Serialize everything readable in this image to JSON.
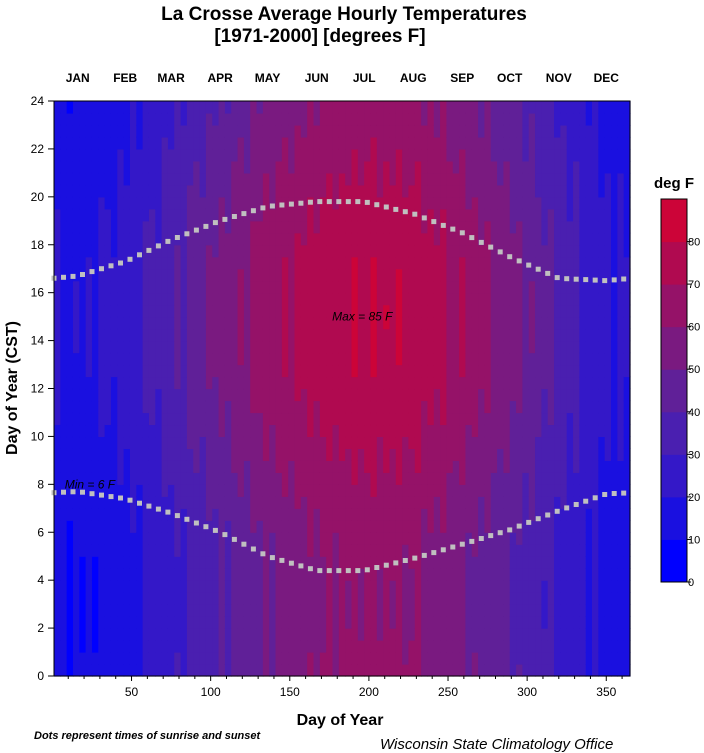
{
  "chart_data": {
    "type": "heatmap",
    "title": "La Crosse  Average Hourly Temperatures",
    "subtitle": "[1971-2000]  [degrees F]",
    "xlabel": "Day of Year",
    "ylabel": "Day of Year (CST)",
    "xlim": [
      1,
      365
    ],
    "ylim": [
      0,
      24
    ],
    "x_ticks": [
      50,
      100,
      150,
      200,
      250,
      300,
      350
    ],
    "y_ticks": [
      0,
      2,
      4,
      6,
      8,
      10,
      12,
      14,
      16,
      18,
      20,
      22,
      24
    ],
    "months": [
      "JAN",
      "FEB",
      "MAR",
      "APR",
      "MAY",
      "JUN",
      "JUL",
      "AUG",
      "SEP",
      "OCT",
      "NOV",
      "DEC"
    ],
    "month_mid_days": [
      16,
      46,
      75,
      106,
      136,
      167,
      197,
      228,
      259,
      289,
      320,
      350
    ],
    "colorbar": {
      "title": "deg F",
      "ticks": [
        0,
        10,
        20,
        30,
        40,
        50,
        60,
        70,
        80
      ],
      "range": [
        0,
        90
      ]
    },
    "monthly_mean_temp": [
      14,
      20,
      32,
      46,
      58,
      67,
      71,
      69,
      60,
      48,
      33,
      19
    ],
    "diurnal_amplitude_by_month": [
      4,
      5,
      6,
      8,
      9,
      9,
      9,
      9,
      9,
      8,
      5,
      4
    ],
    "peak_hour": 15,
    "sunrise_hours": [
      7.7,
      7.4,
      6.8,
      6.0,
      5.0,
      4.4,
      4.4,
      4.9,
      5.5,
      6.1,
      6.9,
      7.6
    ],
    "sunset_hours": [
      16.7,
      17.3,
      18.2,
      19.0,
      19.6,
      19.8,
      19.8,
      19.3,
      18.5,
      17.5,
      16.6,
      16.5
    ],
    "annotations": [
      {
        "text": "Max = 85 F",
        "day": 197,
        "hour": 15
      },
      {
        "text": "Min = 6 F",
        "day": 28,
        "hour": 8
      }
    ],
    "footnote": "Dots represent times of sunrise and sunset",
    "credit": "Wisconsin State Climatology Office",
    "colors": {
      "scale": [
        "#0000ff",
        "#1a10e0",
        "#3418c8",
        "#4a1fb0",
        "#602098",
        "#7a1a80",
        "#951268",
        "#b00a50",
        "#cc0438",
        "#ff0000"
      ],
      "dots": "#c0c0c0"
    }
  }
}
